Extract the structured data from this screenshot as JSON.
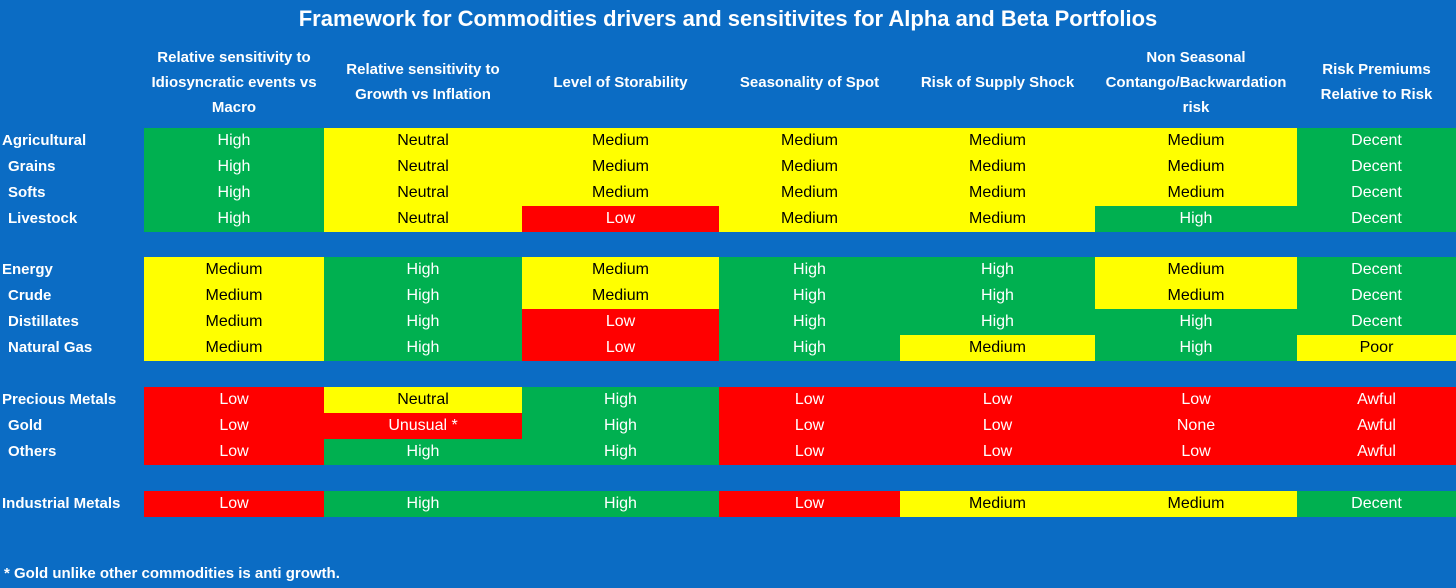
{
  "title": "Framework for Commodities drivers and sensitivites for Alpha and Beta Portfolios",
  "headers": [
    "Relative sensitivity to Idiosyncratic events vs Macro",
    "Relative sensitivity to Growth vs Inflation",
    "Level of Storability",
    "Seasonality of Spot",
    "Risk of Supply Shock",
    "Non Seasonal Contango/Backwardation risk",
    "Risk Premiums Relative to Risk"
  ],
  "colors": {
    "background": "#0b6cc4",
    "green": "#00b050",
    "yellow": "#ffff00",
    "red": "#ff0000"
  },
  "groups": [
    {
      "rows": [
        {
          "label": "Agricultural",
          "sub": false,
          "values": [
            "High",
            "Neutral",
            "Medium",
            "Medium",
            "Medium",
            "Medium",
            "Decent"
          ],
          "colors": [
            "g",
            "y",
            "y",
            "y",
            "y",
            "y",
            "g"
          ]
        },
        {
          "label": "Grains",
          "sub": true,
          "values": [
            "High",
            "Neutral",
            "Medium",
            "Medium",
            "Medium",
            "Medium",
            "Decent"
          ],
          "colors": [
            "g",
            "y",
            "y",
            "y",
            "y",
            "y",
            "g"
          ]
        },
        {
          "label": "Softs",
          "sub": true,
          "values": [
            "High",
            "Neutral",
            "Medium",
            "Medium",
            "Medium",
            "Medium",
            "Decent"
          ],
          "colors": [
            "g",
            "y",
            "y",
            "y",
            "y",
            "y",
            "g"
          ]
        },
        {
          "label": "Livestock",
          "sub": true,
          "values": [
            "High",
            "Neutral",
            "Low",
            "Medium",
            "Medium",
            "High",
            "Decent"
          ],
          "colors": [
            "g",
            "y",
            "r",
            "y",
            "y",
            "g",
            "g"
          ]
        }
      ]
    },
    {
      "rows": [
        {
          "label": "Energy",
          "sub": false,
          "values": [
            "Medium",
            "High",
            "Medium",
            "High",
            "High",
            "Medium",
            "Decent"
          ],
          "colors": [
            "y",
            "g",
            "y",
            "g",
            "g",
            "y",
            "g"
          ]
        },
        {
          "label": "Crude",
          "sub": true,
          "values": [
            "Medium",
            "High",
            "Medium",
            "High",
            "High",
            "Medium",
            "Decent"
          ],
          "colors": [
            "y",
            "g",
            "y",
            "g",
            "g",
            "y",
            "g"
          ]
        },
        {
          "label": "Distillates",
          "sub": true,
          "values": [
            "Medium",
            "High",
            "Low",
            "High",
            "High",
            "High",
            "Decent"
          ],
          "colors": [
            "y",
            "g",
            "r",
            "g",
            "g",
            "g",
            "g"
          ]
        },
        {
          "label": "Natural Gas",
          "sub": true,
          "values": [
            "Medium",
            "High",
            "Low",
            "High",
            "Medium",
            "High",
            "Poor"
          ],
          "colors": [
            "y",
            "g",
            "r",
            "g",
            "y",
            "g",
            "y"
          ]
        }
      ]
    },
    {
      "rows": [
        {
          "label": "Precious Metals",
          "sub": false,
          "values": [
            "Low",
            "Neutral",
            "High",
            "Low",
            "Low",
            "Low",
            "Awful"
          ],
          "colors": [
            "r",
            "y",
            "g",
            "r",
            "r",
            "r",
            "r"
          ]
        },
        {
          "label": "Gold",
          "sub": true,
          "values": [
            "Low",
            "Unusual *",
            "High",
            "Low",
            "Low",
            "None",
            "Awful"
          ],
          "colors": [
            "r",
            "r",
            "g",
            "r",
            "r",
            "r",
            "r"
          ]
        },
        {
          "label": "Others",
          "sub": true,
          "values": [
            "Low",
            "High",
            "High",
            "Low",
            "Low",
            "Low",
            "Awful"
          ],
          "colors": [
            "r",
            "g",
            "g",
            "r",
            "r",
            "r",
            "r"
          ]
        }
      ]
    },
    {
      "rows": [
        {
          "label": "Industrial Metals",
          "sub": false,
          "values": [
            "Low",
            "High",
            "High",
            "Low",
            "Medium",
            "Medium",
            "Decent"
          ],
          "colors": [
            "r",
            "g",
            "g",
            "r",
            "y",
            "y",
            "g"
          ]
        }
      ]
    }
  ],
  "footnote": "* Gold unlike other commodities is anti growth."
}
